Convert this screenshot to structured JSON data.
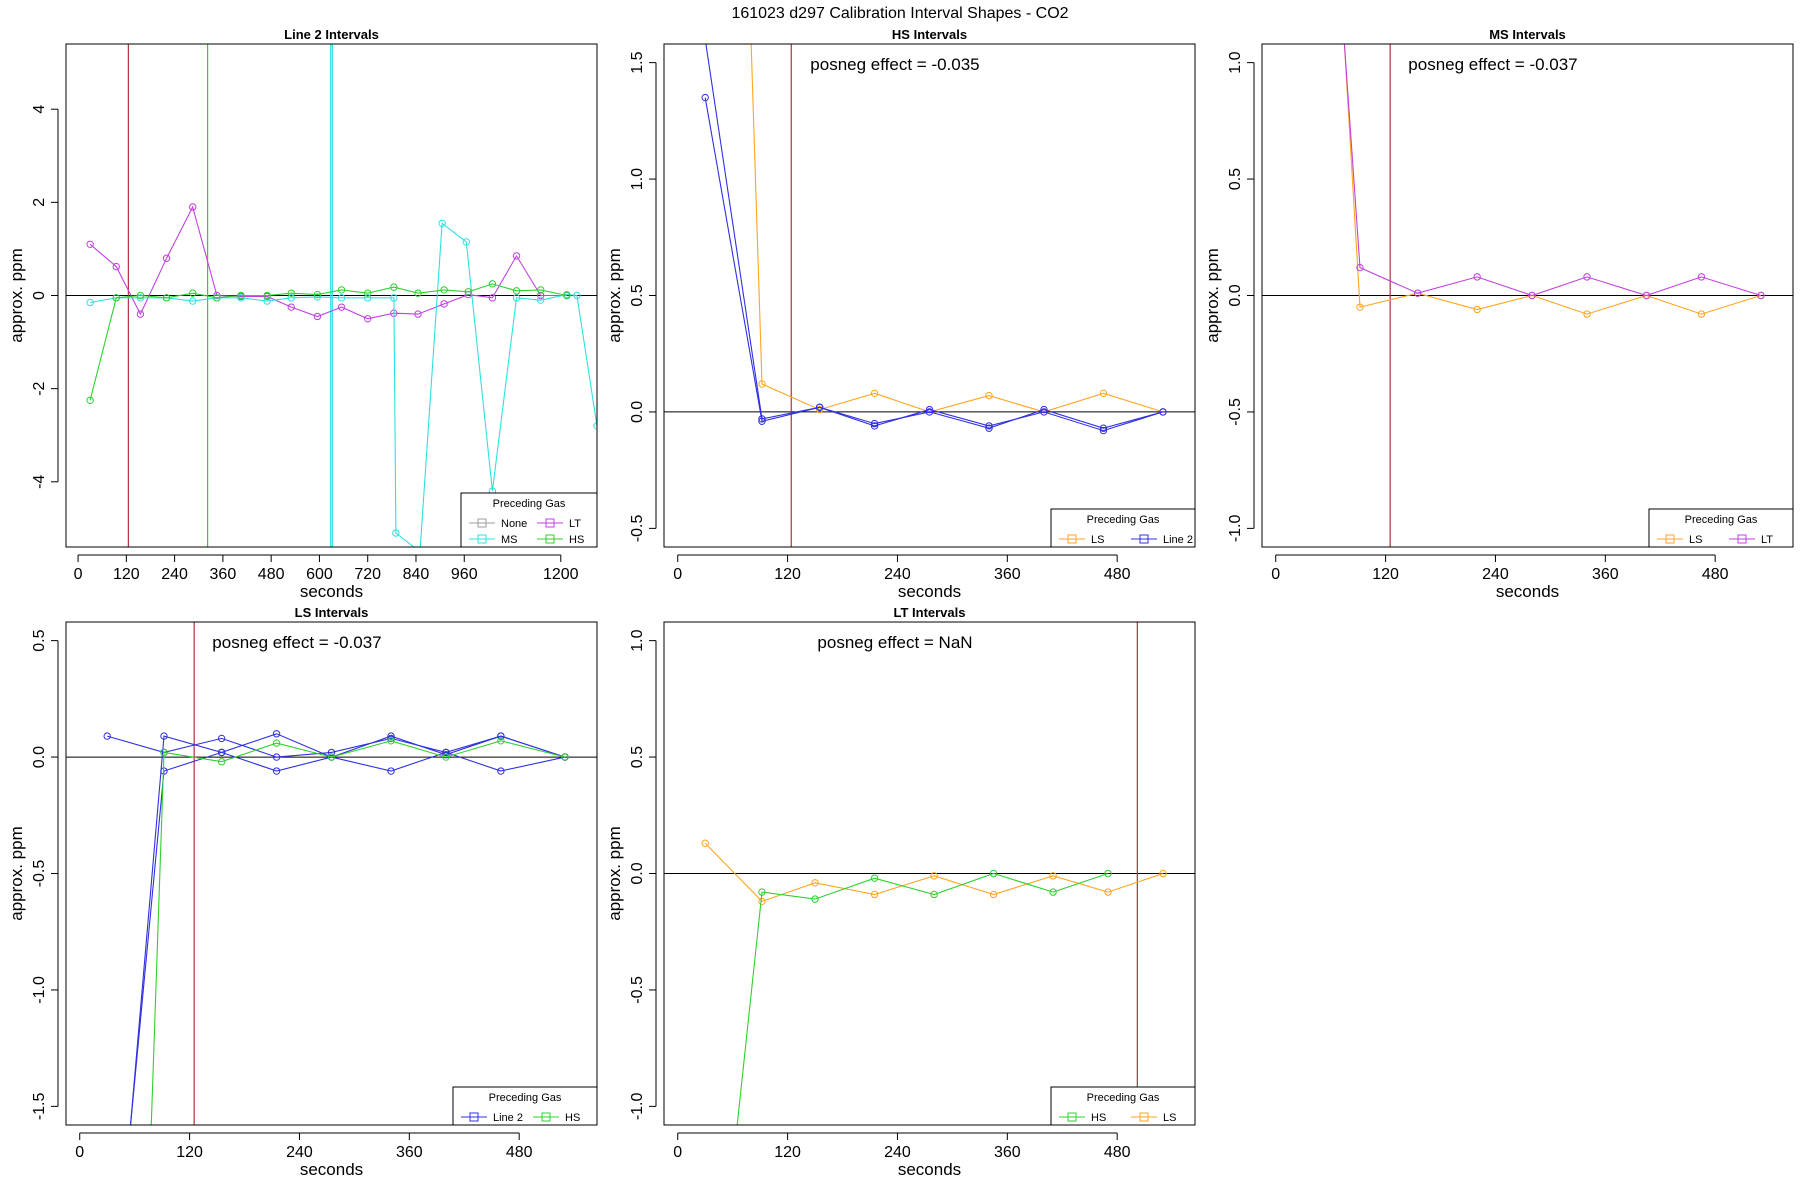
{
  "page_title": "161023  d297   Calibration Interval Shapes - CO2",
  "legend_title": "Preceding Gas",
  "colors": {
    "None": "#9e9e9e",
    "LT": "#c040e0",
    "MS": "#30e0e0",
    "HS": "#30d030",
    "LS": "#ffa520",
    "Line 2": "#3030e0",
    "vline_red": "#b03040"
  },
  "chart_data": [
    {
      "type": "line",
      "title": "Line 2 Intervals",
      "xlabel": "seconds",
      "ylabel": "approx. ppm",
      "xlim": [
        -30,
        1290
      ],
      "ylim": [
        -5.4,
        5.4
      ],
      "xticks": [
        0,
        120,
        240,
        360,
        480,
        600,
        720,
        840,
        960,
        1200
      ],
      "yticks": [
        -4,
        -2,
        0,
        2,
        4
      ],
      "annotation": "",
      "vlines": [
        {
          "x": 125,
          "color": "vline_red"
        },
        {
          "x": 322,
          "color": "HS"
        },
        {
          "x": 628,
          "color": "MS"
        },
        {
          "x": 632,
          "color": "MS"
        }
      ],
      "legend": {
        "entries": [
          "None",
          "LT",
          "MS",
          "HS"
        ],
        "columns": 2
      },
      "series": [
        {
          "name": "LT",
          "color": "LT",
          "x": [
            30,
            95,
            155,
            220,
            285,
            345,
            405,
            470,
            530,
            595,
            655,
            720,
            785,
            845,
            910,
            970,
            1030,
            1090,
            1150,
            1215
          ],
          "y": [
            1.1,
            0.62,
            -0.4,
            0.8,
            1.9,
            0.0,
            -0.02,
            -0.02,
            -0.25,
            -0.45,
            -0.25,
            -0.5,
            -0.38,
            -0.4,
            -0.18,
            0.02,
            -0.05,
            0.85,
            0.0,
            0.0
          ]
        },
        {
          "name": "MS",
          "color": "MS",
          "x": [
            30,
            95,
            155,
            220,
            285,
            345,
            405,
            470,
            530,
            595,
            655,
            720,
            785,
            790,
            850,
            905,
            965,
            1030,
            1090,
            1150,
            1215,
            1240,
            1290
          ],
          "y": [
            -0.15,
            -0.05,
            -0.05,
            -0.05,
            -0.12,
            -0.05,
            -0.05,
            -0.12,
            -0.05,
            -0.03,
            -0.05,
            -0.05,
            -0.05,
            -5.1,
            -5.5,
            1.55,
            1.15,
            -4.2,
            -0.05,
            -0.1,
            0.02,
            0.0,
            -2.8
          ]
        },
        {
          "name": "HS",
          "color": "HS",
          "x": [
            30,
            95,
            155,
            220,
            285,
            345,
            405,
            470,
            530,
            595,
            655,
            720,
            785,
            845,
            910,
            970,
            1030,
            1090,
            1150,
            1215
          ],
          "y": [
            -2.25,
            -0.05,
            0.0,
            -0.05,
            0.05,
            -0.05,
            0.0,
            0.0,
            0.05,
            0.02,
            0.12,
            0.05,
            0.18,
            0.05,
            0.12,
            0.08,
            0.25,
            0.1,
            0.12,
            0.0
          ]
        }
      ]
    },
    {
      "type": "line",
      "title": "HS Intervals",
      "xlabel": "seconds",
      "ylabel": "approx. ppm",
      "xlim": [
        -15,
        565
      ],
      "ylim": [
        -0.58,
        1.58
      ],
      "xticks": [
        0,
        120,
        240,
        360,
        480
      ],
      "yticks": [
        -0.5,
        0.0,
        0.5,
        1.0,
        1.5
      ],
      "annotation": "posneg effect = -0.035",
      "vlines": [
        {
          "x": 124,
          "color": "vline_red"
        }
      ],
      "legend": {
        "entries": [
          "LS",
          "Line 2"
        ],
        "columns": 2
      },
      "series": [
        {
          "name": "LS",
          "color": "LS",
          "x": [
            80,
            92,
            155,
            215,
            275,
            340,
            400,
            465,
            530
          ],
          "y": [
            1.6,
            0.12,
            0.01,
            0.08,
            0.0,
            0.07,
            0.0,
            0.08,
            0.0
          ]
        },
        {
          "name": "Line 2",
          "color": "Line 2",
          "x": [
            30,
            92,
            155,
            215,
            275,
            340,
            400,
            465,
            530
          ],
          "y": [
            1.6,
            -0.03,
            0.02,
            -0.05,
            0.0,
            -0.07,
            0.01,
            -0.07,
            0.0
          ]
        },
        {
          "name": "Line 2",
          "color": "Line 2",
          "x": [
            30,
            92,
            155,
            215,
            275,
            340,
            400,
            465,
            530
          ],
          "y": [
            1.35,
            -0.04,
            0.02,
            -0.06,
            0.01,
            -0.06,
            0.0,
            -0.08,
            0.0
          ]
        }
      ]
    },
    {
      "type": "line",
      "title": "MS Intervals",
      "xlabel": "seconds",
      "ylabel": "approx. ppm",
      "xlim": [
        -15,
        565
      ],
      "ylim": [
        -1.08,
        1.08
      ],
      "xticks": [
        0,
        120,
        240,
        360,
        480
      ],
      "yticks": [
        -1.0,
        -0.5,
        0.0,
        0.5,
        1.0
      ],
      "annotation": "posneg effect = -0.037",
      "vlines": [
        {
          "x": 125,
          "color": "vline_red"
        }
      ],
      "legend": {
        "entries": [
          "LS",
          "LT"
        ],
        "columns": 2
      },
      "series": [
        {
          "name": "LS",
          "color": "LS",
          "x": [
            75,
            92,
            155,
            220,
            280,
            340,
            405,
            465,
            530
          ],
          "y": [
            1.08,
            -0.05,
            0.01,
            -0.06,
            0.0,
            -0.08,
            0.0,
            -0.08,
            0.0
          ]
        },
        {
          "name": "LT",
          "color": "LT",
          "x": [
            75,
            92,
            155,
            220,
            280,
            340,
            405,
            465,
            530
          ],
          "y": [
            1.08,
            0.12,
            0.01,
            0.08,
            0.0,
            0.08,
            0.0,
            0.08,
            0.0
          ]
        }
      ]
    },
    {
      "type": "line",
      "title": "LS Intervals",
      "xlabel": "seconds",
      "ylabel": "approx. ppm",
      "xlim": [
        -15,
        565
      ],
      "ylim": [
        -1.58,
        0.58
      ],
      "xticks": [
        0,
        120,
        240,
        360,
        480
      ],
      "yticks": [
        -1.5,
        -1.0,
        -0.5,
        0.0,
        0.5
      ],
      "annotation": "posneg effect = -0.037",
      "vlines": [
        {
          "x": 125,
          "color": "vline_red"
        }
      ],
      "legend": {
        "entries": [
          "Line 2",
          "HS"
        ],
        "columns": 2
      },
      "series": [
        {
          "name": "Line 2",
          "color": "Line 2",
          "x": [
            30,
            92,
            155,
            215,
            275,
            340,
            400,
            460,
            530
          ],
          "y": [
            0.09,
            0.02,
            0.08,
            0.0,
            0.02,
            0.08,
            0.02,
            0.09,
            0.0
          ]
        },
        {
          "name": "Line 2",
          "color": "Line 2",
          "x": [
            55,
            92,
            155,
            215,
            275,
            340,
            400,
            460,
            530
          ],
          "y": [
            -1.6,
            0.09,
            0.02,
            0.1,
            0.0,
            0.09,
            0.01,
            0.09,
            0.0
          ]
        },
        {
          "name": "Line 2",
          "color": "Line 2",
          "x": [
            55,
            92,
            155,
            215,
            275,
            340,
            400,
            460,
            530
          ],
          "y": [
            -1.6,
            -0.06,
            0.02,
            -0.06,
            0.0,
            -0.06,
            0.02,
            -0.06,
            0.0
          ]
        },
        {
          "name": "HS",
          "color": "HS",
          "x": [
            78,
            92,
            155,
            215,
            275,
            340,
            400,
            460,
            530
          ],
          "y": [
            -1.6,
            0.02,
            -0.02,
            0.06,
            0.0,
            0.07,
            0.0,
            0.07,
            0.0
          ]
        }
      ]
    },
    {
      "type": "line",
      "title": "LT Intervals",
      "xlabel": "seconds",
      "ylabel": "approx. ppm",
      "xlim": [
        -15,
        565
      ],
      "ylim": [
        -1.08,
        1.08
      ],
      "xticks": [
        0,
        120,
        240,
        360,
        480
      ],
      "yticks": [
        -1.0,
        -0.5,
        0.0,
        0.5,
        1.0
      ],
      "annotation": "posneg effect = NaN",
      "vlines": [
        {
          "x": 502,
          "color": "vline_red"
        }
      ],
      "legend": {
        "entries": [
          "HS",
          "LS"
        ],
        "columns": 2
      },
      "series": [
        {
          "name": "LS",
          "color": "LS",
          "x": [
            30,
            92,
            150,
            215,
            280,
            345,
            410,
            470,
            530
          ],
          "y": [
            0.13,
            -0.12,
            -0.04,
            -0.09,
            -0.01,
            -0.09,
            -0.01,
            -0.08,
            0.0
          ]
        },
        {
          "name": "HS",
          "color": "HS",
          "x": [
            65,
            92,
            150,
            215,
            280,
            345,
            410,
            470
          ],
          "y": [
            -1.08,
            -0.08,
            -0.11,
            -0.02,
            -0.09,
            0.0,
            -0.08,
            0.0
          ]
        }
      ]
    }
  ]
}
